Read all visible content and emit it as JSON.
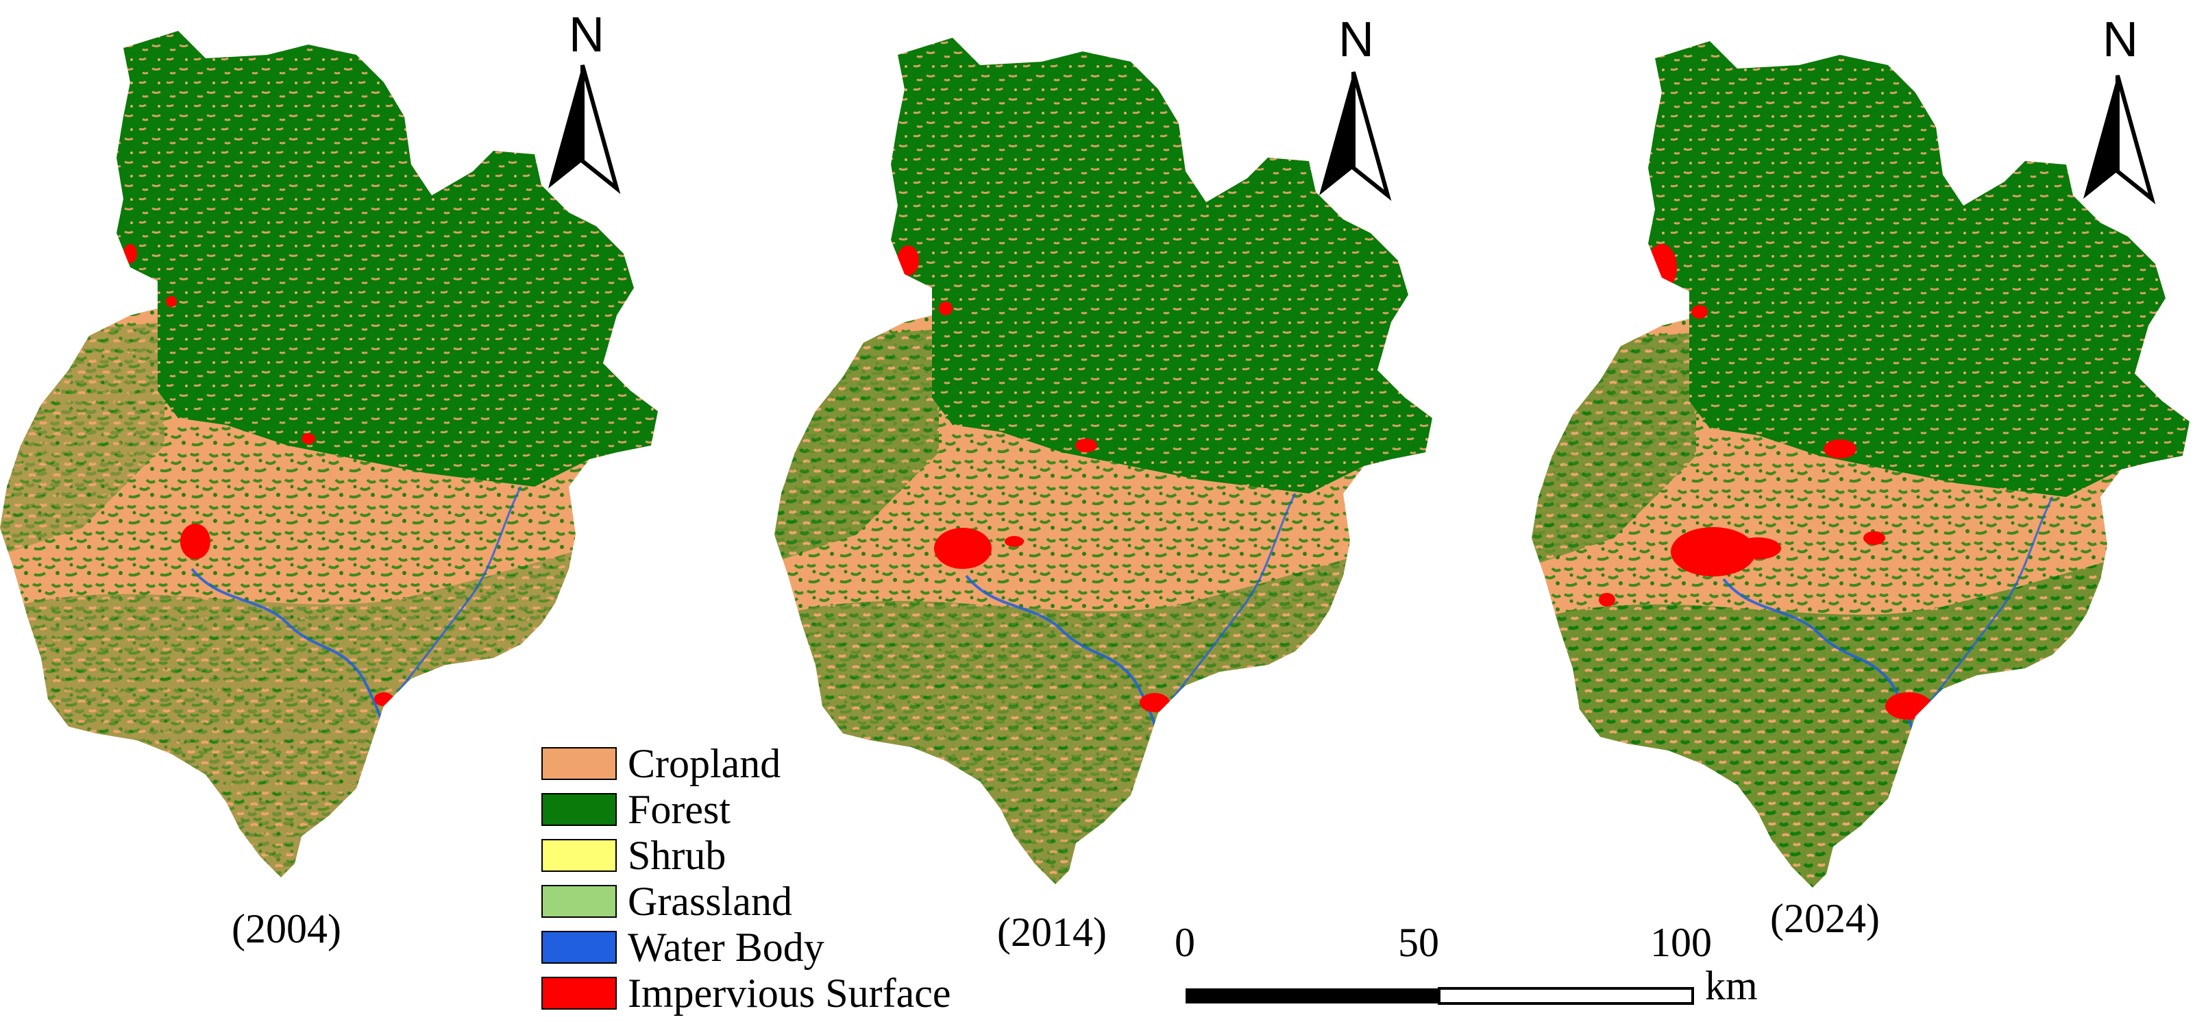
{
  "maps": [
    {
      "year_label": "(2004)",
      "id": "2004"
    },
    {
      "year_label": "(2014)",
      "id": "2014"
    },
    {
      "year_label": "(2024)",
      "id": "2024"
    }
  ],
  "north_arrow": {
    "letter": "N"
  },
  "legend": {
    "items": [
      {
        "label": "Cropland",
        "color": "#f0a46c"
      },
      {
        "label": "Forest",
        "color": "#0a7a0a"
      },
      {
        "label": "Shrub",
        "color": "#ffff73"
      },
      {
        "label": "Grassland",
        "color": "#9ed47a"
      },
      {
        "label": "Water Body",
        "color": "#1f5fe0"
      },
      {
        "label": "Impervious Surface",
        "color": "#ff0000"
      }
    ]
  },
  "scale_bar": {
    "ticks": [
      "0",
      "50",
      "100"
    ],
    "unit": "km"
  }
}
